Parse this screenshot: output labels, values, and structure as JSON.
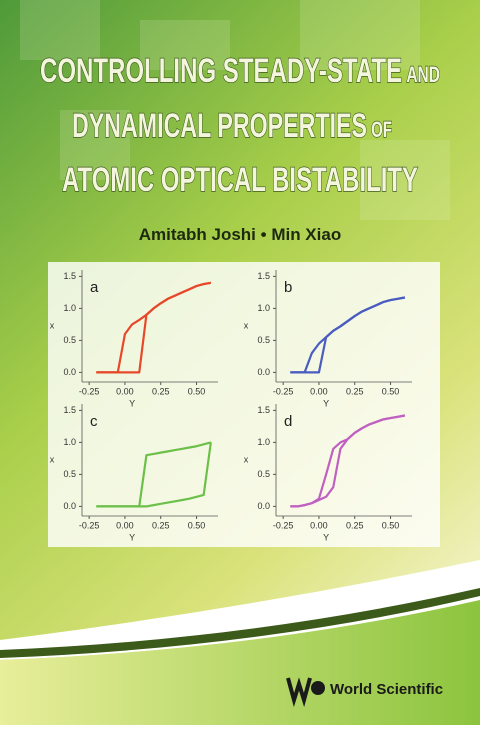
{
  "cover": {
    "title_lines": [
      {
        "main": "CONTROLLING STEADY-STATE",
        "small": "AND"
      },
      {
        "main": "DYNAMICAL PROPERTIES",
        "small": "OF"
      },
      {
        "main": "ATOMIC OPTICAL BISTABILITY"
      }
    ],
    "authors": [
      "Amitabh Joshi",
      "Min Xiao"
    ],
    "publisher": "World Scientific"
  },
  "chart_data": [
    {
      "type": "line",
      "panel": "a",
      "x_label": "Y",
      "y_label": "x",
      "x": [
        -0.2,
        -0.15,
        -0.1,
        -0.05,
        0,
        0.05,
        0.1,
        0.15,
        0.2,
        0.25,
        0.3,
        0.35,
        0.4,
        0.45,
        0.5,
        0.55,
        0.6
      ],
      "series": [
        {
          "color": "#e8482a",
          "values": [
            0,
            0,
            0,
            0,
            0,
            0,
            0,
            0.9,
            1.0,
            1.08,
            1.15,
            1.2,
            1.25,
            1.3,
            1.35,
            1.38,
            1.4
          ]
        },
        {
          "color": "#e8482a",
          "values": [
            0,
            0,
            0,
            0,
            0.6,
            0.75,
            0.82,
            0.9,
            1.0,
            1.08,
            1.15,
            1.2,
            1.25,
            1.3,
            1.35,
            1.38,
            1.4
          ]
        }
      ],
      "xlim": [
        -0.3,
        0.65
      ],
      "ylim": [
        -0.15,
        1.6
      ],
      "xticks": [
        -0.25,
        {
          "value": 0,
          "label": "0.00"
        },
        0.25,
        {
          "value": 0.5,
          "label": "0.50"
        }
      ],
      "yticks": [
        {
          "value": 0,
          "label": "0.0"
        },
        0.5,
        {
          "value": 1,
          "label": "1.0"
        },
        1.5
      ]
    },
    {
      "type": "line",
      "panel": "b",
      "x_label": "Y",
      "y_label": "x",
      "x": [
        -0.2,
        -0.15,
        -0.1,
        -0.05,
        0,
        0.05,
        0.1,
        0.15,
        0.2,
        0.25,
        0.3,
        0.35,
        0.4,
        0.45,
        0.5,
        0.55,
        0.6
      ],
      "series": [
        {
          "color": "#4a5cc0",
          "values": [
            0,
            0,
            0,
            0,
            0,
            0.55,
            0.65,
            0.72,
            0.8,
            0.88,
            0.95,
            1.0,
            1.05,
            1.1,
            1.13,
            1.15,
            1.17
          ]
        },
        {
          "color": "#4a5cc0",
          "values": [
            0,
            0,
            0,
            0.3,
            0.45,
            0.55,
            0.65,
            0.72,
            0.8,
            0.88,
            0.95,
            1.0,
            1.05,
            1.1,
            1.13,
            1.15,
            1.17
          ]
        }
      ],
      "xlim": [
        -0.3,
        0.65
      ],
      "ylim": [
        -0.15,
        1.6
      ],
      "xticks": [
        -0.25,
        {
          "value": 0,
          "label": "0.00"
        },
        0.25,
        {
          "value": 0.5,
          "label": "0.50"
        }
      ],
      "yticks": [
        {
          "value": 0,
          "label": "0.0"
        },
        0.5,
        {
          "value": 1,
          "label": "1.0"
        },
        1.5
      ]
    },
    {
      "type": "line",
      "panel": "c",
      "x_label": "Y",
      "y_label": "x",
      "x": [
        -0.2,
        -0.15,
        -0.1,
        -0.05,
        0,
        0.05,
        0.1,
        0.15,
        0.2,
        0.25,
        0.3,
        0.35,
        0.4,
        0.45,
        0.5,
        0.55,
        0.6
      ],
      "series": [
        {
          "color": "#6cc04a",
          "values": [
            0,
            0,
            0,
            0,
            0,
            0,
            0,
            0,
            0.02,
            0.04,
            0.06,
            0.08,
            0.1,
            0.12,
            0.15,
            0.18,
            1.0
          ]
        },
        {
          "color": "#6cc04a",
          "values": [
            0,
            0,
            0,
            0,
            0,
            0,
            0,
            0.8,
            0.82,
            0.84,
            0.86,
            0.88,
            0.9,
            0.92,
            0.94,
            0.97,
            1.0
          ]
        }
      ],
      "xlim": [
        -0.3,
        0.65
      ],
      "ylim": [
        -0.15,
        1.6
      ],
      "xticks": [
        -0.25,
        {
          "value": 0,
          "label": "0.00"
        },
        0.25,
        {
          "value": 0.5,
          "label": "0.50"
        }
      ],
      "yticks": [
        {
          "value": 0,
          "label": "0.0"
        },
        0.5,
        {
          "value": 1,
          "label": "1.0"
        },
        1.5
      ]
    },
    {
      "type": "line",
      "panel": "d",
      "x_label": "Y",
      "y_label": "x",
      "x": [
        -0.2,
        -0.15,
        -0.1,
        -0.05,
        0,
        0.05,
        0.1,
        0.15,
        0.2,
        0.25,
        0.3,
        0.35,
        0.4,
        0.45,
        0.5,
        0.55,
        0.6
      ],
      "series": [
        {
          "color": "#c060c0",
          "values": [
            0,
            0,
            0.02,
            0.05,
            0.1,
            0.15,
            0.3,
            0.9,
            1.05,
            1.15,
            1.22,
            1.28,
            1.32,
            1.36,
            1.38,
            1.4,
            1.42
          ]
        },
        {
          "color": "#c060c0",
          "values": [
            0,
            0,
            0.02,
            0.05,
            0.12,
            0.5,
            0.9,
            1.0,
            1.05,
            1.15,
            1.22,
            1.28,
            1.32,
            1.36,
            1.38,
            1.4,
            1.42
          ]
        }
      ],
      "xlim": [
        -0.3,
        0.65
      ],
      "ylim": [
        -0.15,
        1.6
      ],
      "xticks": [
        -0.25,
        {
          "value": 0,
          "label": "0.00"
        },
        0.25,
        {
          "value": 0.5,
          "label": "0.50"
        }
      ],
      "yticks": [
        {
          "value": 0,
          "label": "0.0"
        },
        0.5,
        {
          "value": 1,
          "label": "1.0"
        },
        1.5
      ]
    }
  ]
}
